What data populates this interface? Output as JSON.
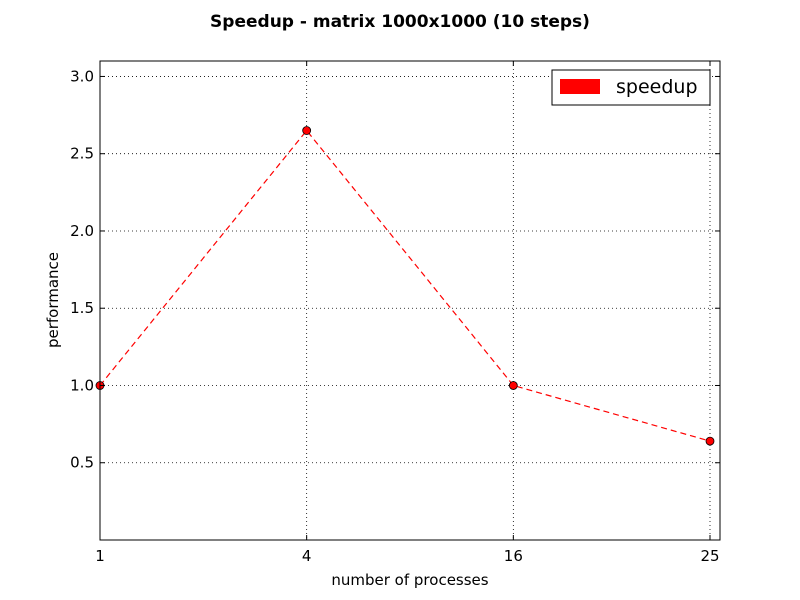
{
  "chart_data": {
    "type": "line",
    "title": "Speedup - matrix 1000x1000 (10 steps)",
    "xlabel": "number of processes",
    "ylabel": "performance",
    "categories": [
      "1",
      "4",
      "16",
      "25"
    ],
    "series": [
      {
        "name": "speedup",
        "values": [
          1.0,
          2.65,
          1.0,
          0.64
        ],
        "color": "#ff0000",
        "line_style": "dashed",
        "marker": "circle"
      }
    ],
    "ylim": [
      0.0,
      3.1
    ],
    "yticks": [
      "0.5",
      "1.0",
      "1.5",
      "2.0",
      "2.5",
      "3.0"
    ],
    "ytick_values": [
      0.5,
      1.0,
      1.5,
      2.0,
      2.5,
      3.0
    ],
    "grid": true,
    "legend_position": "top-right"
  }
}
